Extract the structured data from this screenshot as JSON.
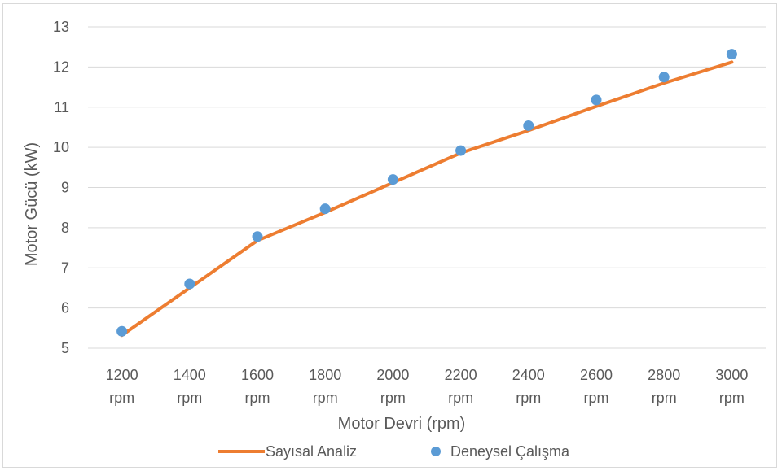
{
  "chart_data": {
    "type": "line",
    "x_categories": [
      [
        "1200",
        "rpm"
      ],
      [
        "1400",
        "rpm"
      ],
      [
        "1600",
        "rpm"
      ],
      [
        "1800",
        "rpm"
      ],
      [
        "2000",
        "rpm"
      ],
      [
        "2200",
        "rpm"
      ],
      [
        "2400",
        "rpm"
      ],
      [
        "2600",
        "rpm"
      ],
      [
        "2800",
        "rpm"
      ],
      [
        "3000",
        "rpm"
      ]
    ],
    "xlabel": "Motor Devri (rpm)",
    "ylabel": "Motor Gücü (kW)",
    "ylim": [
      5,
      13
    ],
    "yticks": [
      "5",
      "6",
      "7",
      "8",
      "9",
      "10",
      "11",
      "12",
      "13"
    ],
    "grid": true,
    "legend_position": "bottom",
    "series": [
      {
        "name": "Sayısal Analiz",
        "style": "line",
        "color": "#ED7D31",
        "values": [
          5.32,
          6.5,
          7.68,
          8.38,
          9.12,
          9.86,
          10.42,
          11.02,
          11.6,
          12.12
        ]
      },
      {
        "name": "Deneysel Çalışma",
        "style": "marker",
        "color": "#5B9BD5",
        "values": [
          5.42,
          6.6,
          7.78,
          8.47,
          9.2,
          9.92,
          10.54,
          11.18,
          11.75,
          12.32
        ]
      }
    ]
  }
}
